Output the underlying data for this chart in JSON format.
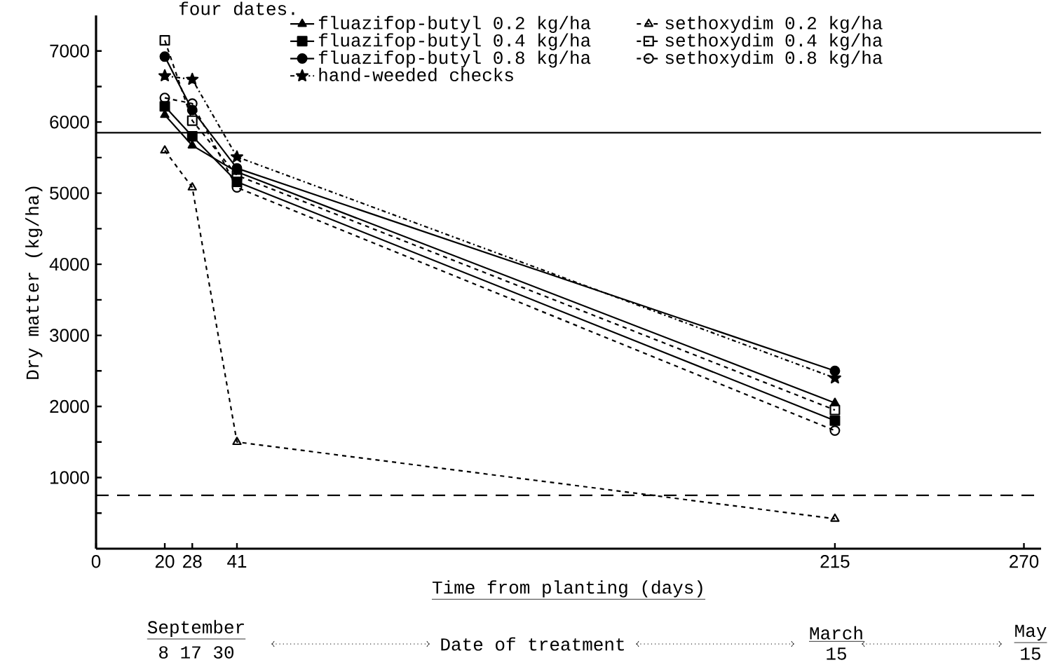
{
  "chart_data": {
    "type": "line",
    "xlabel": "Time from planting (days)",
    "ylabel": "Dry matter (kg/ha)",
    "annotations": [
      "four dates.",
      "September",
      "8 17 30",
      "Date of treatment",
      "March",
      "15",
      "May",
      "15"
    ],
    "xlim": [
      0,
      275
    ],
    "ylim": [
      0,
      7500
    ],
    "xticks": [
      0,
      20,
      28,
      41,
      215,
      270
    ],
    "yticks": [
      {
        "value": 500,
        "label": null
      },
      1000,
      {
        "value": 1500,
        "label": null
      },
      2000,
      {
        "value": 2500,
        "label": null
      },
      3000,
      {
        "value": 3500,
        "label": null
      },
      4000,
      {
        "value": 4500,
        "label": null
      },
      5000,
      {
        "value": 5500,
        "label": null
      },
      6000,
      {
        "value": 6500,
        "label": null
      },
      7000
    ],
    "grid": false,
    "legend": "top",
    "ref_lines": [
      {
        "axis": "y",
        "value": 5850,
        "color": "#000000",
        "line_style": "solid"
      },
      {
        "axis": "y",
        "value": 750,
        "color": "#000000",
        "line_style": "dashed"
      }
    ],
    "x": [
      20,
      28,
      41,
      215
    ],
    "series": [
      {
        "name": "fluazifop-butyl  0.2 kg/ha",
        "color": "#000000",
        "marker": "triangle",
        "line_style": "solid",
        "values": [
          6100,
          5670,
          5300,
          2050
        ]
      },
      {
        "name": "sethoxydim  0.2 kg/ha",
        "color": "#000000",
        "marker": "triangle-open",
        "line_style": "dashed",
        "values": [
          5600,
          5080,
          1500,
          420
        ]
      },
      {
        "name": "fluazifop-butyl  0.4 kg/ha",
        "color": "#000000",
        "marker": "square",
        "line_style": "solid",
        "values": [
          6220,
          5800,
          5160,
          1800
        ]
      },
      {
        "name": "sethoxydim  0.4 kg/ha",
        "color": "#000000",
        "marker": "square-open",
        "line_style": "dashed",
        "values": [
          7150,
          6020,
          5250,
          1950
        ]
      },
      {
        "name": "fluazifop-butyl  0.8 kg/ha",
        "color": "#000000",
        "marker": "circle",
        "line_style": "solid",
        "values": [
          6920,
          6170,
          5350,
          2500
        ]
      },
      {
        "name": "sethoxydim  0.8 kg/ha",
        "color": "#000000",
        "marker": "circle-open",
        "line_style": "dashed",
        "values": [
          6340,
          6260,
          5080,
          1660
        ]
      },
      {
        "name": "hand-weeded checks",
        "color": "#000000",
        "marker": "star",
        "line_style": "dashdot",
        "values": [
          6650,
          6600,
          5510,
          2400
        ]
      }
    ]
  }
}
